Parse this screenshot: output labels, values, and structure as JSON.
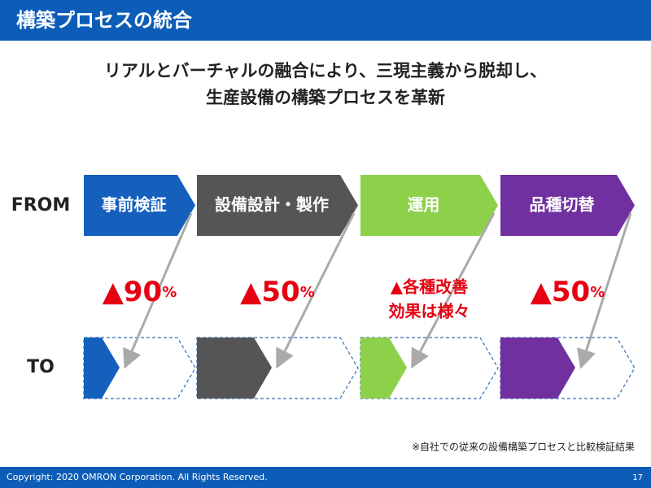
{
  "header": {
    "title": "構築プロセスの統合"
  },
  "subtitle": {
    "lines": [
      "リアルとバーチャルの融合により、三現主義から脱却し、",
      "生産設備の構築プロセスを革新"
    ]
  },
  "rows": {
    "from": "FROM",
    "to": "TO"
  },
  "stages": [
    {
      "name": "事前検証",
      "reduction": {
        "label": "▲90",
        "unit": "%"
      }
    },
    {
      "name": "設備設計・製作",
      "reduction": {
        "label": "▲50",
        "unit": "%"
      }
    },
    {
      "name": "運用",
      "reduction": {
        "lines": [
          "▲各種改善",
          "効果は様々"
        ]
      }
    },
    {
      "name": "品種切替",
      "reduction": {
        "label": "▲50",
        "unit": "%"
      }
    }
  ],
  "footnote": "※自社での従来の設備構築プロセスと比較検証結果",
  "footer": {
    "copyright": "Copyright: 2020 OMRON Corporation. All Rights Reserved.",
    "page": "17"
  }
}
